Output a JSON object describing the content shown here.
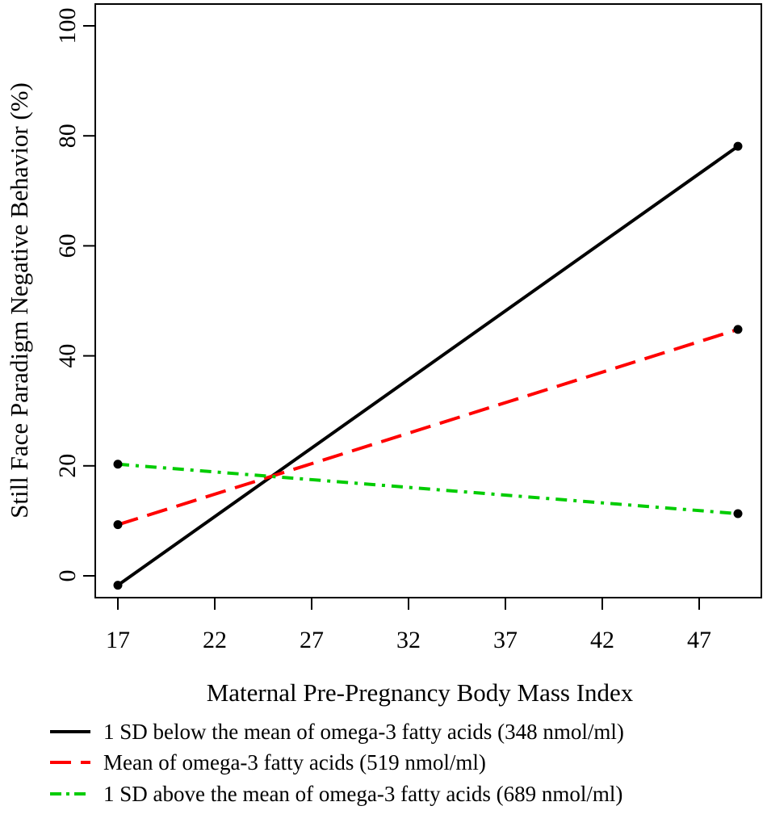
{
  "chart_data": {
    "type": "line",
    "title": "",
    "xlabel": "Maternal Pre-Pregnancy Body Mass Index",
    "ylabel": "Still Face Paradigm Negative Behavior (%)",
    "xlim": [
      15.8,
      49.8
    ],
    "ylim": [
      -4,
      102
    ],
    "xticks": [
      17,
      22,
      27,
      32,
      37,
      42,
      47
    ],
    "yticks": [
      0,
      20,
      40,
      60,
      80,
      100
    ],
    "grid": false,
    "legend_position": "bottom",
    "series": [
      {
        "name": "1 SD below the mean of omega-3 fatty acids (348 nmol/ml)",
        "color": "#000000",
        "dash": "solid",
        "x": [
          17,
          49
        ],
        "y": [
          -1.7,
          78.1
        ]
      },
      {
        "name": "Mean of omega-3 fatty acids (519 nmol/ml)",
        "color": "#ff0000",
        "dash": "dashed",
        "x": [
          17,
          49
        ],
        "y": [
          9.3,
          44.8
        ]
      },
      {
        "name": "1 SD above the mean of omega-3 fatty acids (689 nmol/ml)",
        "color": "#00cc00",
        "dash": "dotdash",
        "x": [
          17,
          49
        ],
        "y": [
          20.3,
          11.3
        ]
      }
    ]
  }
}
